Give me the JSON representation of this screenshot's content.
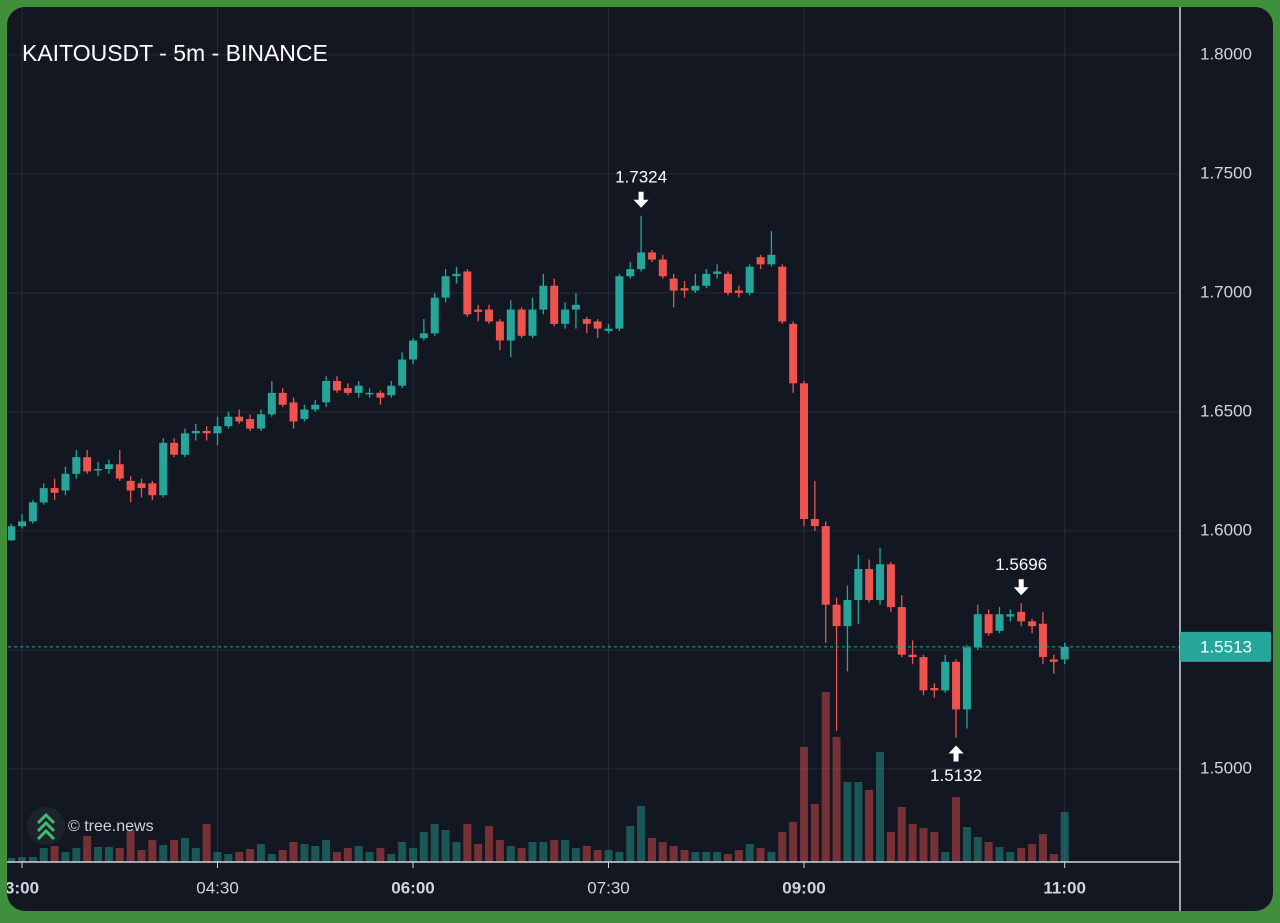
{
  "chart_data": {
    "type": "candlestick",
    "title": "KAITOUSDT - 5m - BINANCE",
    "x": [
      "02:55",
      "03:00",
      "03:05",
      "03:10",
      "03:15",
      "03:20",
      "03:25",
      "03:30",
      "03:35",
      "03:40",
      "03:45",
      "03:50",
      "03:55",
      "04:00",
      "04:05",
      "04:10",
      "04:15",
      "04:20",
      "04:25",
      "04:30",
      "04:35",
      "04:40",
      "04:45",
      "04:50",
      "04:55",
      "05:00",
      "05:05",
      "05:10",
      "05:15",
      "05:20",
      "05:25",
      "05:30",
      "05:35",
      "05:40",
      "05:45",
      "05:50",
      "05:55",
      "06:00",
      "06:05",
      "06:10",
      "06:15",
      "06:20",
      "06:25",
      "06:30",
      "06:35",
      "06:40",
      "06:45",
      "06:50",
      "06:55",
      "07:00",
      "07:05",
      "07:10",
      "07:15",
      "07:20",
      "07:25",
      "07:30",
      "07:35",
      "07:40",
      "07:45",
      "07:50",
      "07:55",
      "08:00",
      "08:05",
      "08:10",
      "08:15",
      "08:20",
      "08:25",
      "08:30",
      "08:35",
      "08:40",
      "08:45",
      "08:50",
      "08:55",
      "09:00",
      "09:05",
      "09:10",
      "09:15",
      "09:20",
      "09:25",
      "09:30",
      "09:35",
      "09:40",
      "09:45",
      "09:50",
      "09:55",
      "10:00",
      "10:05",
      "10:10",
      "10:15",
      "10:20",
      "10:25",
      "10:30",
      "10:35",
      "10:40",
      "10:45",
      "10:50",
      "10:55",
      "11:00"
    ],
    "open": [
      1.596,
      1.602,
      1.604,
      1.612,
      1.618,
      1.617,
      1.624,
      1.631,
      1.626,
      1.626,
      1.628,
      1.621,
      1.62,
      1.62,
      1.615,
      1.637,
      1.632,
      1.641,
      1.642,
      1.641,
      1.644,
      1.648,
      1.647,
      1.643,
      1.649,
      1.658,
      1.654,
      1.647,
      1.651,
      1.654,
      1.663,
      1.66,
      1.658,
      1.658,
      1.658,
      1.657,
      1.661,
      1.672,
      1.681,
      1.683,
      1.698,
      1.707,
      1.709,
      1.693,
      1.693,
      1.688,
      1.68,
      1.693,
      1.682,
      1.693,
      1.703,
      1.687,
      1.693,
      1.689,
      1.688,
      1.684,
      1.685,
      1.707,
      1.71,
      1.717,
      1.714,
      1.706,
      1.702,
      1.701,
      1.703,
      1.708,
      1.708,
      1.701,
      1.7,
      1.715,
      1.712,
      1.711,
      1.687,
      1.662,
      1.605,
      1.602,
      1.569,
      1.56,
      1.571,
      1.584,
      1.571,
      1.586,
      1.568,
      1.548,
      1.547,
      1.534,
      1.533,
      1.545,
      1.525,
      1.551,
      1.565,
      1.558,
      1.564,
      1.566,
      1.562,
      1.561,
      1.546,
      1.546
    ],
    "high": [
      1.603,
      1.607,
      1.613,
      1.62,
      1.622,
      1.627,
      1.634,
      1.634,
      1.629,
      1.63,
      1.634,
      1.623,
      1.622,
      1.621,
      1.639,
      1.639,
      1.643,
      1.645,
      1.644,
      1.648,
      1.65,
      1.651,
      1.649,
      1.651,
      1.663,
      1.66,
      1.656,
      1.653,
      1.655,
      1.665,
      1.665,
      1.662,
      1.663,
      1.66,
      1.659,
      1.663,
      1.675,
      1.681,
      1.689,
      1.7,
      1.71,
      1.711,
      1.71,
      1.695,
      1.695,
      1.689,
      1.697,
      1.694,
      1.698,
      1.708,
      1.706,
      1.696,
      1.7,
      1.69,
      1.689,
      1.687,
      1.708,
      1.713,
      1.7324,
      1.718,
      1.716,
      1.708,
      1.705,
      1.708,
      1.71,
      1.712,
      1.709,
      1.703,
      1.712,
      1.716,
      1.726,
      1.712,
      1.688,
      1.663,
      1.621,
      1.604,
      1.572,
      1.577,
      1.59,
      1.588,
      1.593,
      1.587,
      1.573,
      1.554,
      1.548,
      1.536,
      1.548,
      1.546,
      1.552,
      1.569,
      1.567,
      1.568,
      1.567,
      1.5696,
      1.563,
      1.566,
      1.548,
      1.553
    ],
    "low": [
      1.596,
      1.601,
      1.603,
      1.611,
      1.613,
      1.615,
      1.622,
      1.624,
      1.623,
      1.624,
      1.621,
      1.612,
      1.614,
      1.613,
      1.614,
      1.631,
      1.631,
      1.638,
      1.638,
      1.636,
      1.643,
      1.645,
      1.642,
      1.642,
      1.648,
      1.652,
      1.643,
      1.646,
      1.65,
      1.652,
      1.658,
      1.657,
      1.656,
      1.656,
      1.653,
      1.656,
      1.66,
      1.67,
      1.68,
      1.682,
      1.696,
      1.704,
      1.69,
      1.688,
      1.687,
      1.676,
      1.673,
      1.681,
      1.681,
      1.691,
      1.686,
      1.685,
      1.685,
      1.683,
      1.681,
      1.683,
      1.684,
      1.706,
      1.709,
      1.713,
      1.706,
      1.694,
      1.698,
      1.7,
      1.702,
      1.706,
      1.699,
      1.698,
      1.699,
      1.71,
      1.711,
      1.687,
      1.658,
      1.602,
      1.6,
      1.553,
      1.516,
      1.541,
      1.561,
      1.57,
      1.569,
      1.566,
      1.547,
      1.544,
      1.531,
      1.53,
      1.532,
      1.5132,
      1.517,
      1.55,
      1.556,
      1.557,
      1.562,
      1.56,
      1.557,
      1.544,
      1.54,
      1.544
    ],
    "close": [
      1.602,
      1.604,
      1.612,
      1.618,
      1.616,
      1.624,
      1.631,
      1.625,
      1.626,
      1.628,
      1.622,
      1.617,
      1.618,
      1.615,
      1.637,
      1.632,
      1.641,
      1.642,
      1.641,
      1.644,
      1.648,
      1.646,
      1.643,
      1.649,
      1.658,
      1.653,
      1.646,
      1.651,
      1.653,
      1.663,
      1.659,
      1.658,
      1.661,
      1.658,
      1.656,
      1.661,
      1.672,
      1.68,
      1.683,
      1.698,
      1.707,
      1.708,
      1.691,
      1.692,
      1.688,
      1.68,
      1.693,
      1.682,
      1.693,
      1.703,
      1.687,
      1.693,
      1.695,
      1.687,
      1.685,
      1.685,
      1.707,
      1.71,
      1.717,
      1.714,
      1.707,
      1.701,
      1.701,
      1.703,
      1.708,
      1.709,
      1.7,
      1.7,
      1.711,
      1.712,
      1.716,
      1.688,
      1.662,
      1.605,
      1.602,
      1.569,
      1.56,
      1.571,
      1.584,
      1.571,
      1.586,
      1.568,
      1.548,
      1.547,
      1.533,
      1.533,
      1.545,
      1.525,
      1.551,
      1.565,
      1.557,
      1.565,
      1.565,
      1.562,
      1.56,
      1.547,
      1.545,
      1.5513
    ],
    "volume": [
      4,
      5,
      5,
      14,
      16,
      10,
      14,
      26,
      15,
      15,
      14,
      32,
      12,
      22,
      17,
      22,
      24,
      14,
      38,
      10,
      8,
      10,
      13,
      18,
      8,
      12,
      20,
      18,
      16,
      22,
      10,
      14,
      16,
      10,
      14,
      8,
      20,
      14,
      30,
      38,
      32,
      20,
      38,
      18,
      36,
      22,
      16,
      14,
      20,
      20,
      22,
      22,
      14,
      16,
      12,
      12,
      10,
      36,
      56,
      24,
      20,
      16,
      12,
      10,
      10,
      10,
      8,
      12,
      18,
      14,
      10,
      30,
      40,
      115,
      58,
      170,
      125,
      80,
      80,
      72,
      110,
      30,
      55,
      38,
      34,
      30,
      10,
      65,
      35,
      25,
      20,
      15,
      10,
      14,
      18,
      28,
      8,
      50
    ],
    "ylim": [
      1.4609,
      1.8197
    ],
    "yticks": [
      {
        "value": 1.5,
        "label": "1.5000"
      },
      {
        "value": 1.55,
        "label": "1.5500"
      },
      {
        "value": 1.6,
        "label": "1.6000"
      },
      {
        "value": 1.65,
        "label": "1.6500"
      },
      {
        "value": 1.7,
        "label": "1.7000"
      },
      {
        "value": 1.75,
        "label": "1.7500"
      },
      {
        "value": 1.8,
        "label": "1.8000"
      }
    ],
    "xticks": [
      {
        "value": "03:00",
        "label": "3:00"
      },
      "04:30",
      "06:00",
      "07:30",
      "09:00",
      "11:00"
    ],
    "up_color": "#26a69a",
    "down_color": "#ef5350",
    "grid": true,
    "annotations": [
      1.7324,
      1.5696,
      1.5132
    ]
  },
  "watermark": "© tree.news"
}
